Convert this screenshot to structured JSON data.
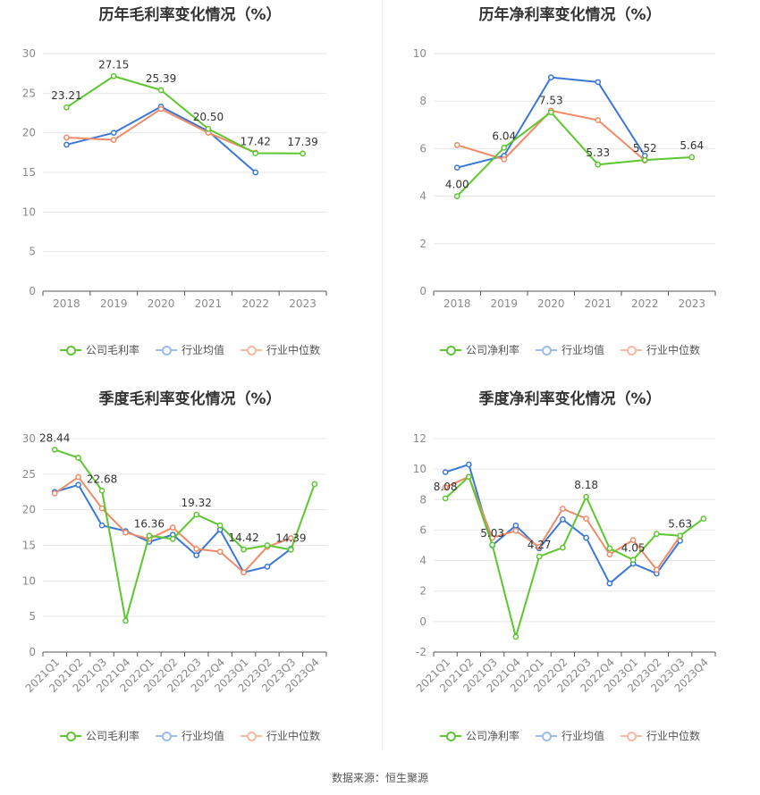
{
  "source_label": "数据来源：恒生聚源",
  "legend_colors": {
    "company": "#5cc72f",
    "avg": "#3a78d8",
    "median": "#f08a68"
  },
  "chart_data": [
    {
      "type": "line",
      "title": "历年毛利率变化情况（%）",
      "categories": [
        "2018",
        "2019",
        "2020",
        "2021",
        "2022",
        "2023"
      ],
      "ylim": [
        0,
        30
      ],
      "yticks": [
        0,
        5,
        10,
        15,
        20,
        25,
        30
      ],
      "grid": true,
      "legend_position": "bottom",
      "series": [
        {
          "name": "公司毛利率",
          "color": "#5cc72f",
          "labeled": true,
          "values": [
            23.21,
            27.15,
            25.39,
            20.5,
            17.42,
            17.39
          ]
        },
        {
          "name": "行业均值",
          "color": "#3a78d8",
          "labeled": false,
          "values": [
            18.5,
            20.0,
            23.3,
            20.2,
            15.0,
            null
          ]
        },
        {
          "name": "行业中位数",
          "color": "#f08a68",
          "labeled": false,
          "values": [
            19.4,
            19.1,
            23.0,
            20.0,
            17.5,
            null
          ]
        }
      ],
      "data_labels": [
        "23.21",
        "27.15",
        "25.39",
        "20.50",
        "17.42",
        "17.39"
      ]
    },
    {
      "type": "line",
      "title": "历年净利率变化情况（%）",
      "categories": [
        "2018",
        "2019",
        "2020",
        "2021",
        "2022",
        "2023"
      ],
      "ylim": [
        0,
        10
      ],
      "yticks": [
        0,
        2,
        4,
        6,
        8,
        10
      ],
      "grid": true,
      "legend_position": "bottom",
      "series": [
        {
          "name": "公司净利率",
          "color": "#5cc72f",
          "labeled": true,
          "values": [
            4.0,
            6.04,
            7.53,
            5.33,
            5.52,
            5.64
          ]
        },
        {
          "name": "行业均值",
          "color": "#3a78d8",
          "labeled": false,
          "values": [
            5.2,
            5.7,
            9.0,
            8.8,
            5.7,
            null
          ]
        },
        {
          "name": "行业中位数",
          "color": "#f08a68",
          "labeled": false,
          "values": [
            6.15,
            5.55,
            7.6,
            7.2,
            5.5,
            null
          ]
        }
      ],
      "data_labels": [
        "4.00",
        "6.04",
        "7.53",
        "5.33",
        "5.52",
        "5.64"
      ]
    },
    {
      "type": "line",
      "title": "季度毛利率变化情况（%）",
      "categories": [
        "2021Q1",
        "2021Q2",
        "2021Q3",
        "2021Q4",
        "2022Q1",
        "2022Q2",
        "2022Q3",
        "2022Q4",
        "2023Q1",
        "2023Q2",
        "2023Q3",
        "2023Q4"
      ],
      "ylim": [
        0,
        30
      ],
      "yticks": [
        0,
        5,
        10,
        15,
        20,
        25,
        30
      ],
      "grid": true,
      "legend_position": "bottom",
      "series": [
        {
          "name": "公司毛利率",
          "color": "#5cc72f",
          "labeled": true,
          "values": [
            28.44,
            27.3,
            22.68,
            4.4,
            16.36,
            15.9,
            19.32,
            17.8,
            14.42,
            15.0,
            14.39,
            23.6
          ]
        },
        {
          "name": "行业均值",
          "color": "#3a78d8",
          "labeled": false,
          "values": [
            22.5,
            23.5,
            17.8,
            17.0,
            15.5,
            16.5,
            13.6,
            17.2,
            11.2,
            12.0,
            14.5,
            null
          ]
        },
        {
          "name": "行业中位数",
          "color": "#f08a68",
          "labeled": false,
          "values": [
            22.3,
            24.6,
            20.2,
            16.8,
            15.9,
            17.5,
            14.5,
            14.1,
            11.2,
            14.8,
            16.0,
            null
          ]
        }
      ],
      "data_labels": [
        "28.44",
        "",
        "22.68",
        "",
        "16.36",
        "",
        "19.32",
        "",
        "14.42",
        "",
        "14.39",
        ""
      ]
    },
    {
      "type": "line",
      "title": "季度净利率变化情况（%）",
      "categories": [
        "2021Q1",
        "2021Q2",
        "2021Q3",
        "2021Q4",
        "2022Q1",
        "2022Q2",
        "2022Q3",
        "2022Q4",
        "2023Q1",
        "2023Q2",
        "2023Q3",
        "2023Q4"
      ],
      "ylim": [
        -2,
        12
      ],
      "yticks": [
        -2,
        0,
        2,
        4,
        6,
        8,
        10,
        12
      ],
      "grid": true,
      "legend_position": "bottom",
      "series": [
        {
          "name": "公司净利率",
          "color": "#5cc72f",
          "labeled": true,
          "values": [
            8.08,
            9.5,
            5.03,
            -1.0,
            4.27,
            4.85,
            8.18,
            4.8,
            4.05,
            5.75,
            5.63,
            6.75
          ]
        },
        {
          "name": "行业均值",
          "color": "#3a78d8",
          "labeled": false,
          "values": [
            9.8,
            10.3,
            5.0,
            6.3,
            4.8,
            6.7,
            5.5,
            2.5,
            3.8,
            3.15,
            5.3,
            null
          ]
        },
        {
          "name": "行业中位数",
          "color": "#f08a68",
          "labeled": false,
          "values": [
            8.8,
            9.5,
            5.5,
            5.95,
            4.9,
            7.4,
            6.75,
            4.4,
            5.35,
            3.4,
            5.6,
            null
          ]
        }
      ],
      "data_labels": [
        "8.08",
        "",
        "5.03",
        "",
        "4.27",
        "",
        "8.18",
        "",
        "4.05",
        "",
        "5.63",
        ""
      ]
    }
  ]
}
